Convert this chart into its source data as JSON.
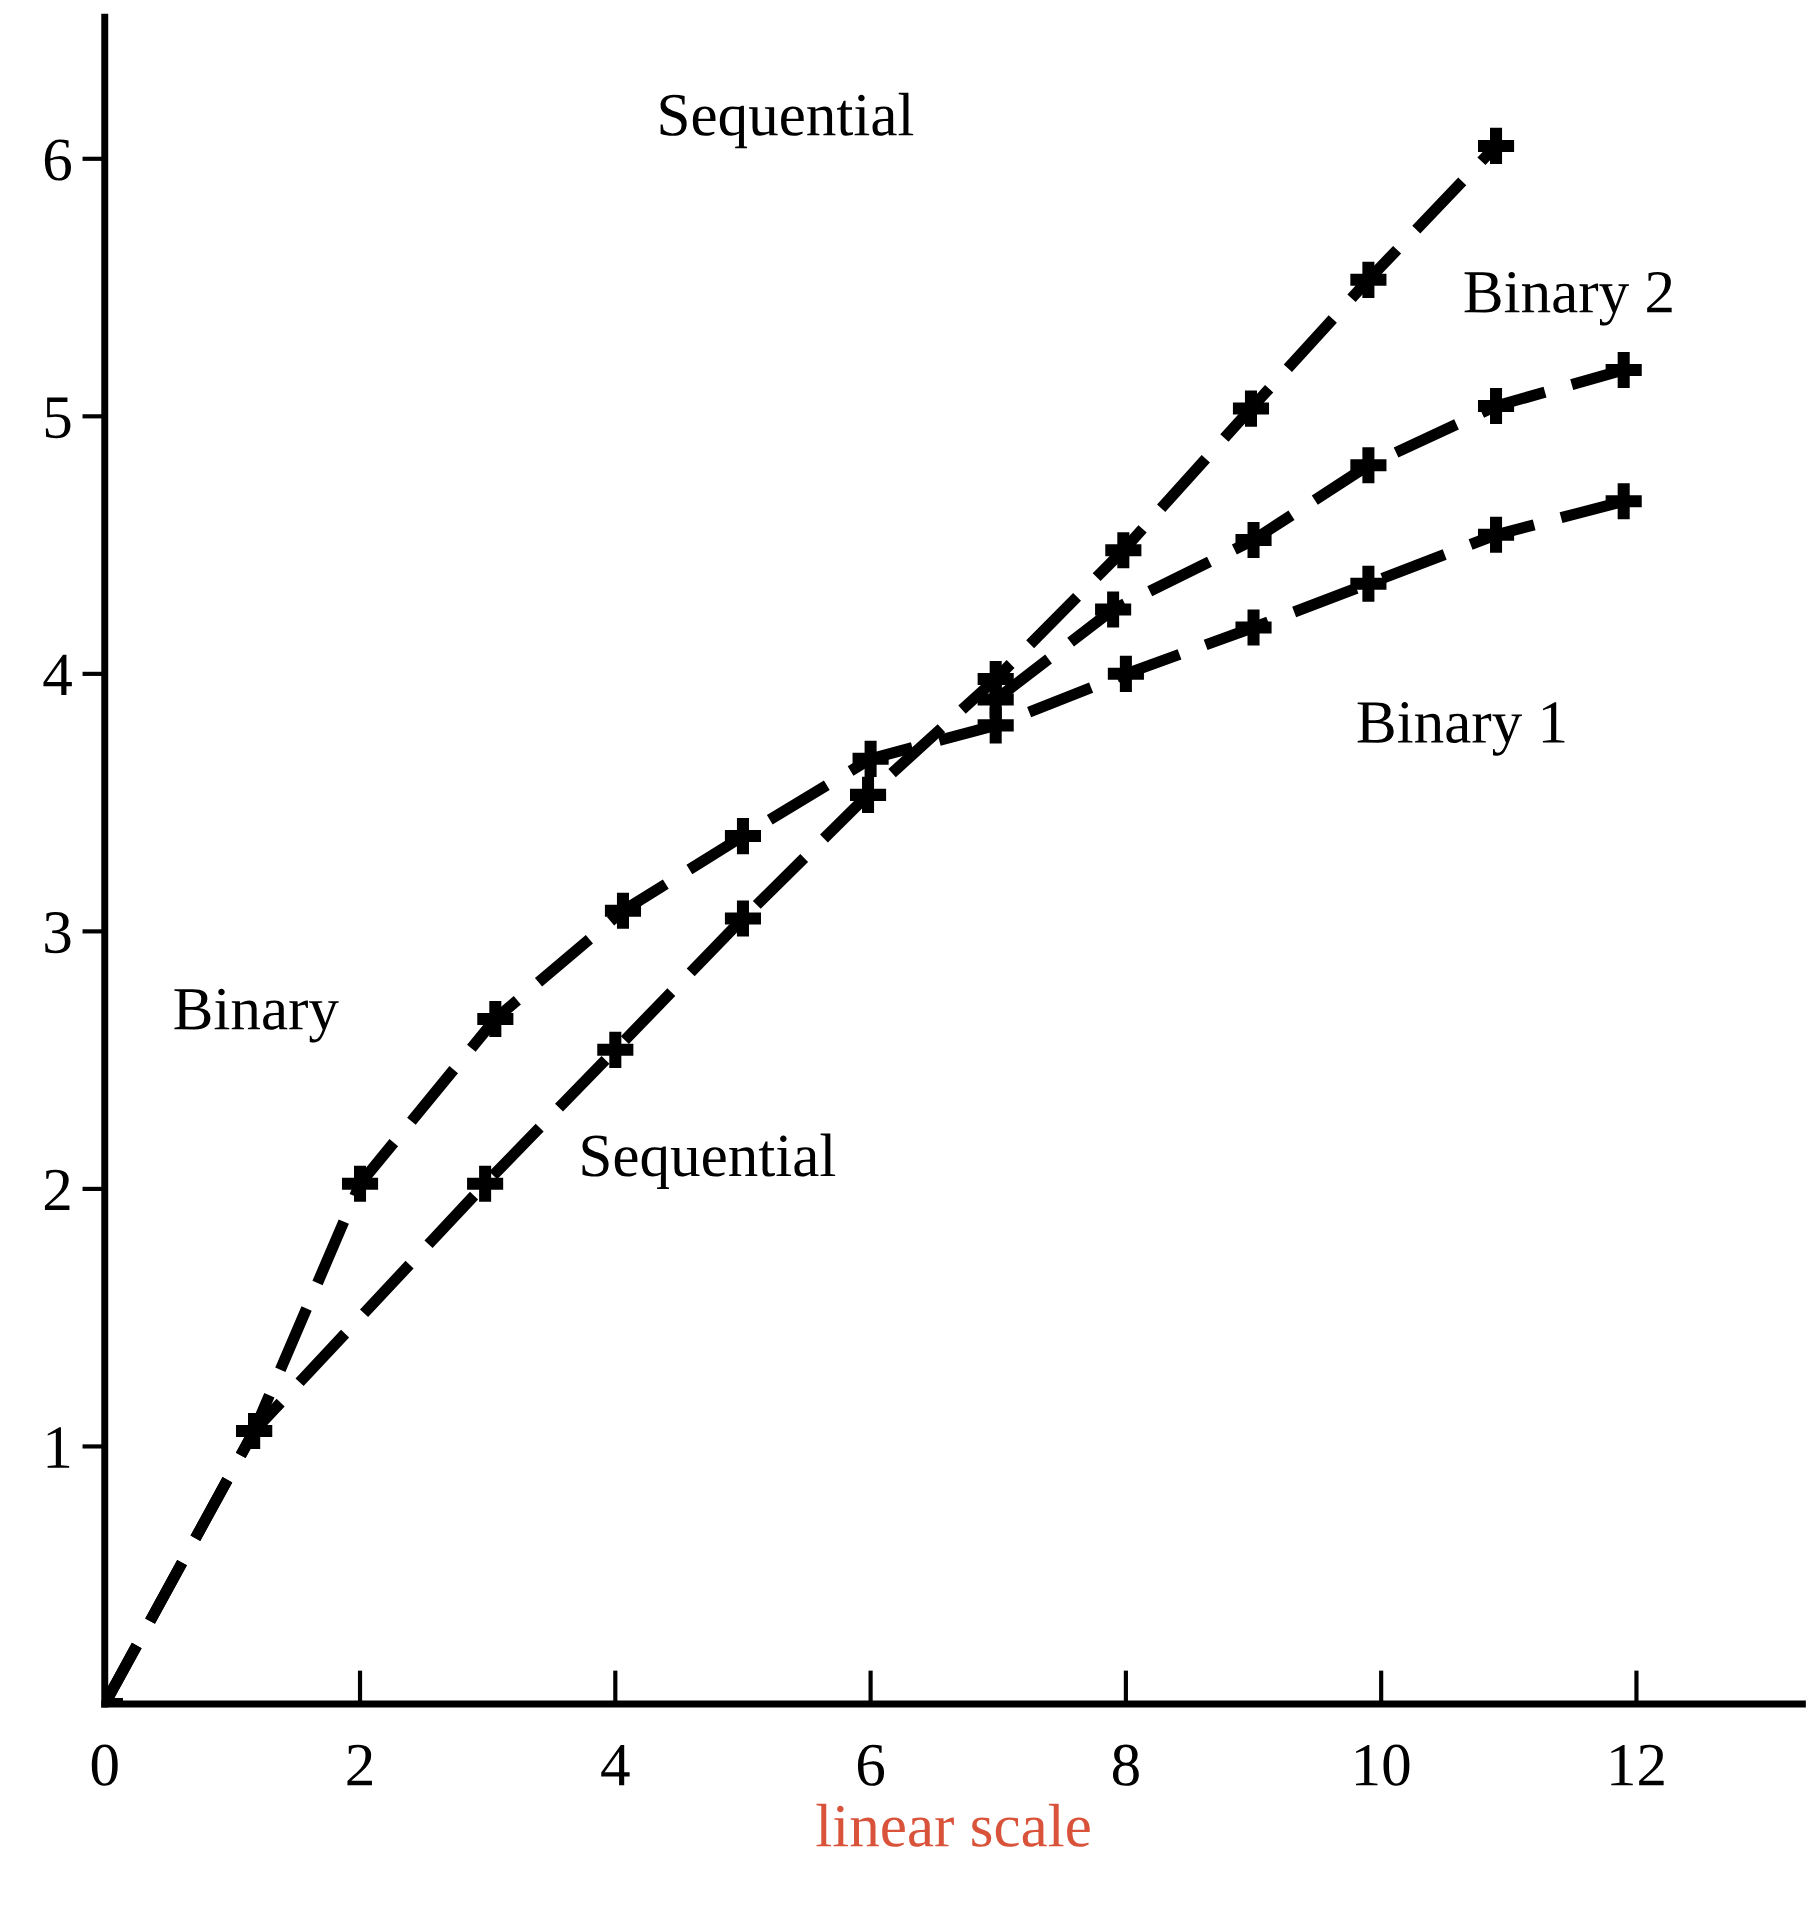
{
  "chart_data": {
    "type": "line",
    "xlabel": "linear scale",
    "series": [
      {
        "color": "#000000",
        "x": [
          0,
          1.17,
          2.98,
          4.0,
          5.0,
          5.98,
          6.98,
          7.98,
          8.98,
          9.9,
          10.9
        ],
        "values": [
          0,
          1.06,
          2.02,
          2.54,
          3.05,
          3.53,
          3.98,
          4.48,
          5.03,
          5.53,
          6.05
        ]
      },
      {
        "color": "#000000",
        "x": [
          0,
          1.17,
          2.0,
          3.06,
          4.06,
          5.0,
          6.0,
          6.98,
          8.0,
          9.0,
          9.9,
          10.9,
          11.9
        ],
        "values": [
          0,
          1.06,
          2.02,
          2.66,
          3.08,
          3.37,
          3.67,
          3.8,
          4.0,
          4.18,
          4.35,
          4.54,
          4.67
        ]
      },
      {
        "color": "#000000",
        "x": [
          6.98,
          7.9,
          9.0,
          9.9,
          10.9,
          11.9
        ],
        "values": [
          3.9,
          4.25,
          4.52,
          4.81,
          5.04,
          5.18
        ]
      }
    ],
    "annotations": [
      "Sequential",
      "Binary 2",
      "Binary 1",
      "Binary",
      "Sequential"
    ],
    "xlim": [
      0,
      13.3
    ],
    "ylim": [
      0,
      6.55
    ],
    "xticks": [
      0,
      2,
      4,
      6,
      8,
      10,
      12
    ],
    "yticks": [
      1,
      2,
      3,
      4,
      5,
      6
    ],
    "grid": false,
    "marker": "cross",
    "line_style": "dashed"
  }
}
